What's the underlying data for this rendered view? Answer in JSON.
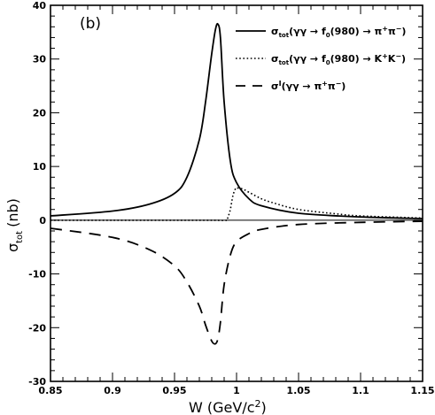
{
  "chart_data": {
    "type": "line",
    "panel_label": "(b)",
    "xlabel": "W (GeV/c²)",
    "ylabel": "σ_tot (nb)",
    "xlim": [
      0.85,
      1.15
    ],
    "ylim": [
      -30,
      40
    ],
    "xticks": [
      0.85,
      0.9,
      0.95,
      1,
      1.05,
      1.1,
      1.15
    ],
    "xtick_labels": [
      "0.85",
      "0.9",
      "0.95",
      "1",
      "1.05",
      "1.1",
      "1.15"
    ],
    "yticks": [
      -30,
      -20,
      -10,
      0,
      10,
      20,
      30,
      40
    ],
    "ytick_labels": [
      "-30",
      "-20",
      "-10",
      "0",
      "10",
      "20",
      "30",
      "40"
    ],
    "grid": false,
    "legend_position": "top-right",
    "series": [
      {
        "name": "σ_tot(γγ → f0(980) → π+π−)",
        "style": "solid",
        "x": [
          0.85,
          0.9,
          0.93,
          0.95,
          0.96,
          0.97,
          0.975,
          0.98,
          0.983,
          0.985,
          0.987,
          0.99,
          0.995,
          1.0,
          1.01,
          1.02,
          1.05,
          1.1,
          1.15
        ],
        "y": [
          0.8,
          1.7,
          3.0,
          5.0,
          8.0,
          15.0,
          22.0,
          31.0,
          35.5,
          36.5,
          34.0,
          22.0,
          11.0,
          7.0,
          4.0,
          2.7,
          1.3,
          0.6,
          0.3
        ]
      },
      {
        "name": "σ_tot(γγ → f0(980) → K+K−)",
        "style": "dotted",
        "x": [
          0.85,
          0.9,
          0.95,
          0.98,
          0.992,
          0.993,
          0.995,
          0.997,
          0.999,
          1.0,
          1.005,
          1.01,
          1.02,
          1.03,
          1.05,
          1.08,
          1.1,
          1.15
        ],
        "y": [
          0,
          0,
          0,
          0,
          0,
          0.5,
          2.0,
          4.5,
          5.8,
          6.0,
          5.8,
          5.2,
          4.0,
          3.2,
          2.0,
          1.2,
          0.8,
          0.4
        ]
      },
      {
        "name": "σI(γγ → π+π−)",
        "style": "dashed",
        "x": [
          0.85,
          0.9,
          0.93,
          0.95,
          0.96,
          0.97,
          0.975,
          0.98,
          0.983,
          0.985,
          0.987,
          0.99,
          0.995,
          1.0,
          1.01,
          1.02,
          1.05,
          1.1,
          1.15
        ],
        "y": [
          -1.5,
          -3.2,
          -5.5,
          -8.5,
          -11.5,
          -16.0,
          -19.5,
          -22.5,
          -23.0,
          -22.0,
          -19.0,
          -12.0,
          -6.5,
          -4.0,
          -2.5,
          -1.7,
          -0.8,
          -0.4,
          -0.2
        ]
      }
    ]
  },
  "legend": [
    {
      "sigma": "σ",
      "sub": "tot",
      "pre": "(γγ → f",
      "pre_sub": "0",
      "mid": "(980) → π",
      "sup1": "+",
      "mid2": "π",
      "sup2": "−",
      "end": ")",
      "style": "solid"
    },
    {
      "sigma": "σ",
      "sub": "tot",
      "pre": "(γγ → f",
      "pre_sub": "0",
      "mid": "(980) → K",
      "sup1": "+",
      "mid2": "K",
      "sup2": "−",
      "end": ")",
      "style": "dotted"
    },
    {
      "sigma": "σ",
      "sup_sigma": "I",
      "pre": "(γγ → π",
      "sup1": "+",
      "mid2": "π",
      "sup2": "−",
      "end": ")",
      "style": "dashed"
    }
  ],
  "labels": {
    "xlabel_main": "W (GeV/c",
    "xlabel_sup": "2",
    "xlabel_end": ")",
    "ylabel_sigma": "σ",
    "ylabel_sub": "tot",
    "ylabel_unit": "(nb)"
  }
}
